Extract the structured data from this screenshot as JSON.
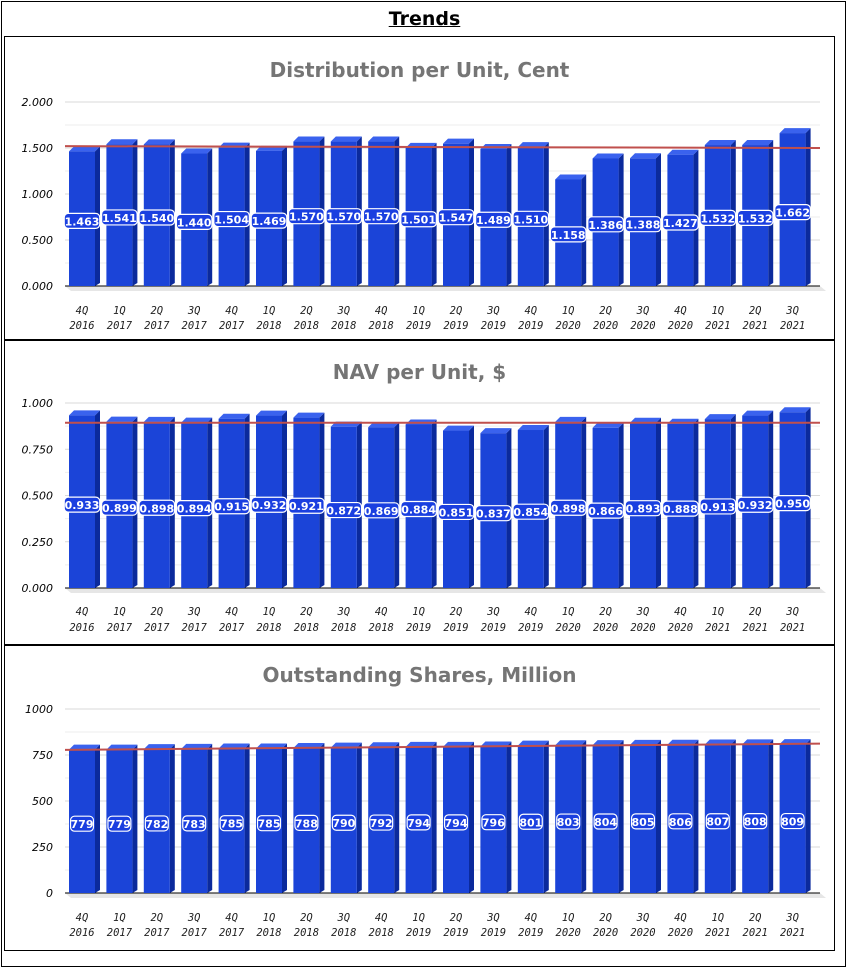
{
  "page": {
    "title": "Trends"
  },
  "colors": {
    "bar_front": "#1b44d8",
    "bar_side": "#0b2a9c",
    "bar_top": "#3a62ee",
    "trend": "#c0504d",
    "grid": "#d9d9d9"
  },
  "chart_data": [
    {
      "type": "bar",
      "title": "Distribution per Unit, Cent",
      "categories": [
        [
          "4Q",
          "2016"
        ],
        [
          "1Q",
          "2017"
        ],
        [
          "2Q",
          "2017"
        ],
        [
          "3Q",
          "2017"
        ],
        [
          "4Q",
          "2017"
        ],
        [
          "1Q",
          "2018"
        ],
        [
          "2Q",
          "2018"
        ],
        [
          "3Q",
          "2018"
        ],
        [
          "4Q",
          "2018"
        ],
        [
          "1Q",
          "2019"
        ],
        [
          "2Q",
          "2019"
        ],
        [
          "3Q",
          "2019"
        ],
        [
          "4Q",
          "2019"
        ],
        [
          "1Q",
          "2020"
        ],
        [
          "2Q",
          "2020"
        ],
        [
          "3Q",
          "2020"
        ],
        [
          "4Q",
          "2020"
        ],
        [
          "1Q",
          "2021"
        ],
        [
          "2Q",
          "2021"
        ],
        [
          "3Q",
          "2021"
        ]
      ],
      "values": [
        1.463,
        1.541,
        1.54,
        1.44,
        1.504,
        1.469,
        1.57,
        1.57,
        1.57,
        1.501,
        1.547,
        1.489,
        1.51,
        1.158,
        1.386,
        1.388,
        1.427,
        1.532,
        1.532,
        1.662
      ],
      "labels": [
        "1.463",
        "1.541",
        "1.540",
        "1.440",
        "1.504",
        "1.469",
        "1.570",
        "1.570",
        "1.570",
        "1.501",
        "1.547",
        "1.489",
        "1.510",
        "1.158",
        "1.386",
        "1.388",
        "1.427",
        "1.532",
        "1.532",
        "1.662"
      ],
      "ylim": [
        0,
        2
      ],
      "yticks": [
        0,
        0.5,
        1,
        1.5,
        2
      ],
      "ytick_labels": [
        "0.000",
        "0.500",
        "1.000",
        "1.500",
        "2.000"
      ],
      "trendline": [
        1.52,
        1.5
      ]
    },
    {
      "type": "bar",
      "title": "NAV per Unit, $",
      "categories": [
        [
          "4Q",
          "2016"
        ],
        [
          "1Q",
          "2017"
        ],
        [
          "2Q",
          "2017"
        ],
        [
          "3Q",
          "2017"
        ],
        [
          "4Q",
          "2017"
        ],
        [
          "1Q",
          "2018"
        ],
        [
          "2Q",
          "2018"
        ],
        [
          "3Q",
          "2018"
        ],
        [
          "4Q",
          "2018"
        ],
        [
          "1Q",
          "2019"
        ],
        [
          "2Q",
          "2019"
        ],
        [
          "3Q",
          "2019"
        ],
        [
          "4Q",
          "2019"
        ],
        [
          "1Q",
          "2020"
        ],
        [
          "2Q",
          "2020"
        ],
        [
          "3Q",
          "2020"
        ],
        [
          "4Q",
          "2020"
        ],
        [
          "1Q",
          "2021"
        ],
        [
          "2Q",
          "2021"
        ],
        [
          "3Q",
          "2021"
        ]
      ],
      "values": [
        0.933,
        0.899,
        0.898,
        0.894,
        0.915,
        0.932,
        0.921,
        0.872,
        0.869,
        0.884,
        0.851,
        0.837,
        0.854,
        0.898,
        0.866,
        0.893,
        0.888,
        0.913,
        0.932,
        0.95
      ],
      "labels": [
        "0.933",
        "0.899",
        "0.898",
        "0.894",
        "0.915",
        "0.932",
        "0.921",
        "0.872",
        "0.869",
        "0.884",
        "0.851",
        "0.837",
        "0.854",
        "0.898",
        "0.866",
        "0.893",
        "0.888",
        "0.913",
        "0.932",
        "0.950"
      ],
      "ylim": [
        0,
        1
      ],
      "yticks": [
        0,
        0.25,
        0.5,
        0.75,
        1
      ],
      "ytick_labels": [
        "0.000",
        "0.250",
        "0.500",
        "0.750",
        "1.000"
      ],
      "trendline": [
        0.893,
        0.893
      ]
    },
    {
      "type": "bar",
      "title": "Outstanding Shares, Million",
      "categories": [
        [
          "4Q",
          "2016"
        ],
        [
          "1Q",
          "2017"
        ],
        [
          "2Q",
          "2017"
        ],
        [
          "3Q",
          "2017"
        ],
        [
          "4Q",
          "2017"
        ],
        [
          "1Q",
          "2018"
        ],
        [
          "2Q",
          "2018"
        ],
        [
          "3Q",
          "2018"
        ],
        [
          "4Q",
          "2018"
        ],
        [
          "1Q",
          "2019"
        ],
        [
          "2Q",
          "2019"
        ],
        [
          "3Q",
          "2019"
        ],
        [
          "4Q",
          "2019"
        ],
        [
          "1Q",
          "2020"
        ],
        [
          "2Q",
          "2020"
        ],
        [
          "3Q",
          "2020"
        ],
        [
          "4Q",
          "2020"
        ],
        [
          "1Q",
          "2021"
        ],
        [
          "2Q",
          "2021"
        ],
        [
          "3Q",
          "2021"
        ]
      ],
      "values": [
        779,
        779,
        782,
        783,
        785,
        785,
        788,
        790,
        792,
        794,
        794,
        796,
        801,
        803,
        804,
        805,
        806,
        807,
        808,
        809
      ],
      "labels": [
        "779",
        "779",
        "782",
        "783",
        "785",
        "785",
        "788",
        "790",
        "792",
        "794",
        "794",
        "796",
        "801",
        "803",
        "804",
        "805",
        "806",
        "807",
        "808",
        "809"
      ],
      "ylim": [
        0,
        1000
      ],
      "yticks": [
        0,
        250,
        500,
        750,
        1000
      ],
      "ytick_labels": [
        "0",
        "250",
        "500",
        "750",
        "1000"
      ],
      "trendline": [
        778,
        812
      ]
    }
  ]
}
